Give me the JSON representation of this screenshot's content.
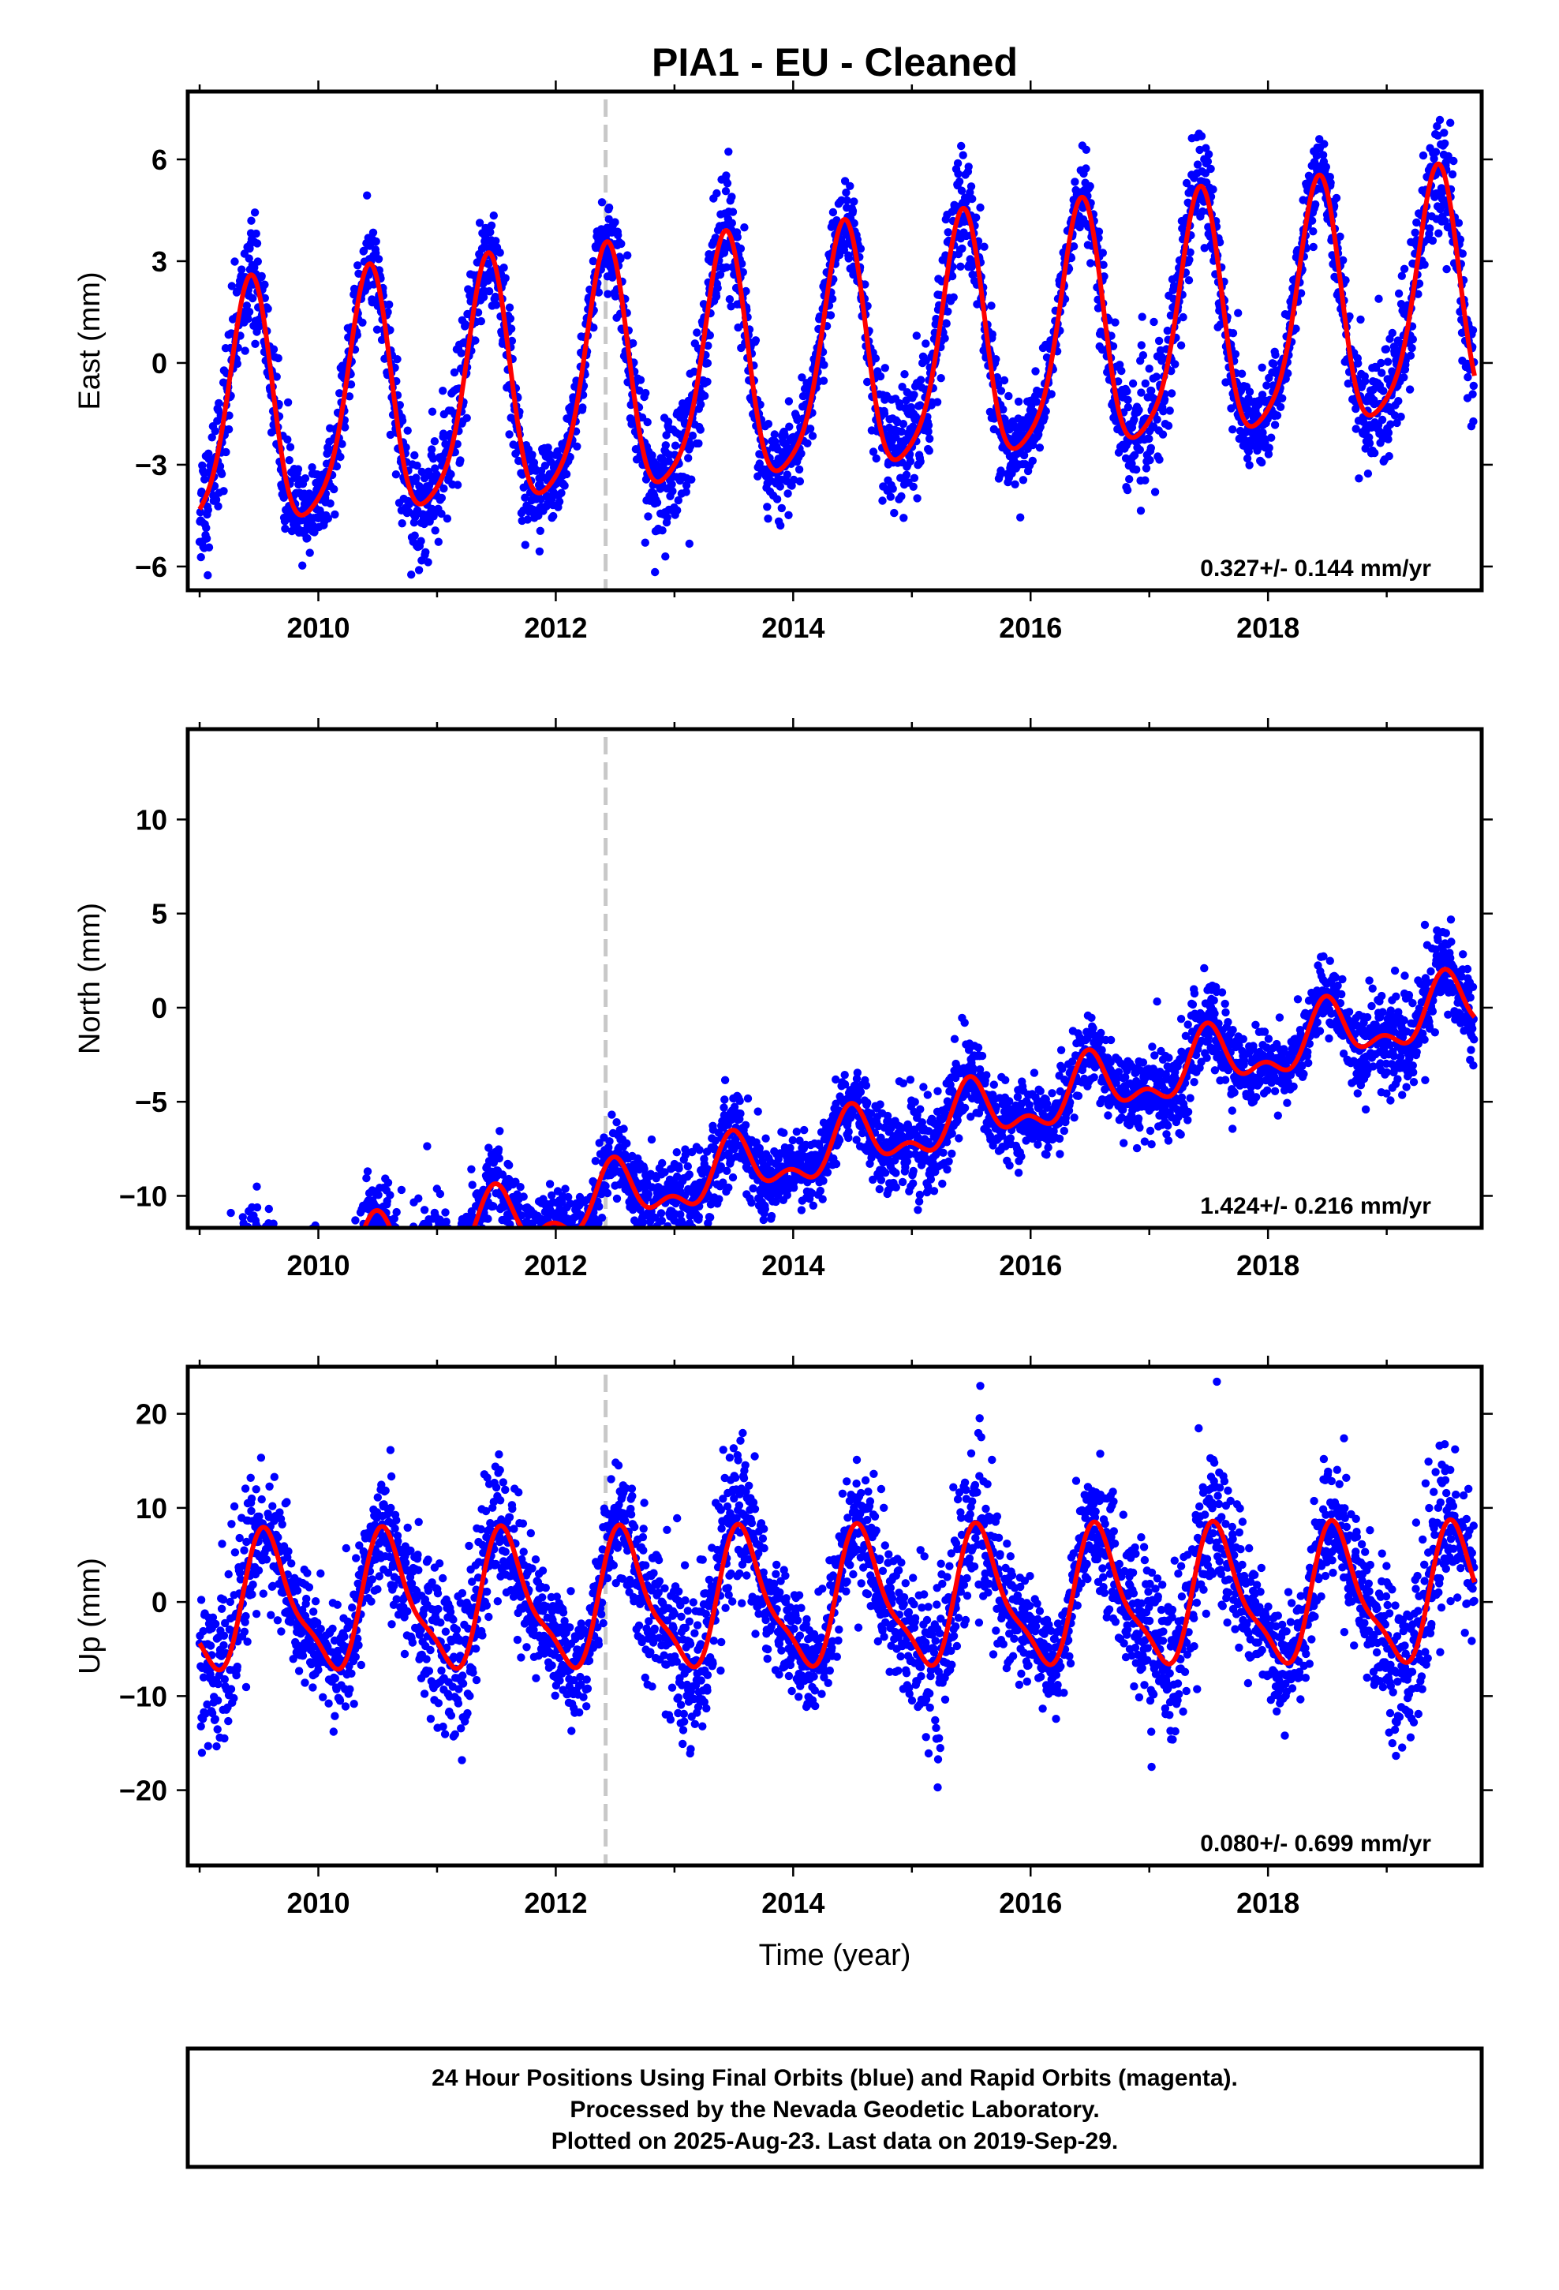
{
  "chart_data": {
    "type": "scatter",
    "title": "PIA1  - EU - Cleaned",
    "xlabel": "Time (year)",
    "xlim": [
      2008.9,
      2019.8
    ],
    "x_ticks": [
      "2010",
      "2012",
      "2014",
      "2016",
      "2018"
    ],
    "step_marker_year": 2012.42,
    "colors": {
      "data": "#0000ff",
      "model": "#ff0000",
      "step": "#c8c8c8",
      "frame": "#000000"
    },
    "start_year": 2009.0,
    "end_year": 2019.74,
    "panels": [
      {
        "ylabel": "East (mm)",
        "ylim": [
          -6.7,
          8.0
        ],
        "y_ticks": [
          6,
          3,
          0,
          -3,
          -6
        ],
        "y_tick_labels": [
          "6",
          "3",
          "0",
          "−3",
          "−6"
        ],
        "rate_label": "0.327+/- 0.144 mm/yr",
        "series": [
          {
            "name": "24 Hour Positions (Final Orbits)",
            "kind": "points"
          },
          {
            "name": "Model fit",
            "kind": "line"
          }
        ],
        "model": {
          "offset": 0.0,
          "rate": 0.327,
          "annual_amp": 3.55,
          "annual_peak": 2009.42,
          "semiannual_amp": 0.7,
          "semiannual_peak": 2009.45,
          "noise_sd": 0.75
        }
      },
      {
        "ylabel": "North (mm)",
        "ylim": [
          -11.7,
          14.8
        ],
        "y_ticks": [
          10,
          5,
          0,
          -5,
          -10
        ],
        "y_tick_labels": [
          "10",
          "5",
          "0",
          "−5",
          "−10"
        ],
        "rate_label": "1.424+/- 0.216 mm/yr",
        "series": [
          {
            "name": "24 Hour Positions (Final Orbits)",
            "kind": "points"
          },
          {
            "name": "Model fit",
            "kind": "line"
          }
        ],
        "model": {
          "offset": -7.4,
          "rate": 1.424,
          "annual_amp": 1.4,
          "annual_peak": 2009.5,
          "semiannual_amp": 0.8,
          "semiannual_peak": 2009.48,
          "noise_sd": 1.1
        }
      },
      {
        "ylabel": "Up (mm)",
        "ylim": [
          -28.0,
          25.0
        ],
        "y_ticks": [
          20,
          10,
          0,
          -10,
          -20
        ],
        "y_tick_labels": [
          "20",
          "10",
          "0",
          "−10",
          "−20"
        ],
        "rate_label": "0.080+/- 0.699 mm/yr",
        "series": [
          {
            "name": "24 Hour Positions (Final Orbits)",
            "kind": "points"
          },
          {
            "name": "Model fit",
            "kind": "line"
          }
        ],
        "model": {
          "offset": 0.0,
          "rate": 0.08,
          "annual_amp": 6.8,
          "annual_peak": 2009.58,
          "semiannual_amp": 2.0,
          "semiannual_peak": 2009.5,
          "noise_sd": 3.6
        }
      }
    ]
  },
  "caption": {
    "line1": "24 Hour Positions Using Final Orbits (blue) and Rapid Orbits (magenta).",
    "line2": "Processed by the Nevada Geodetic Laboratory.",
    "line3": "Plotted on 2025-Aug-23. Last data on 2019-Sep-29."
  }
}
